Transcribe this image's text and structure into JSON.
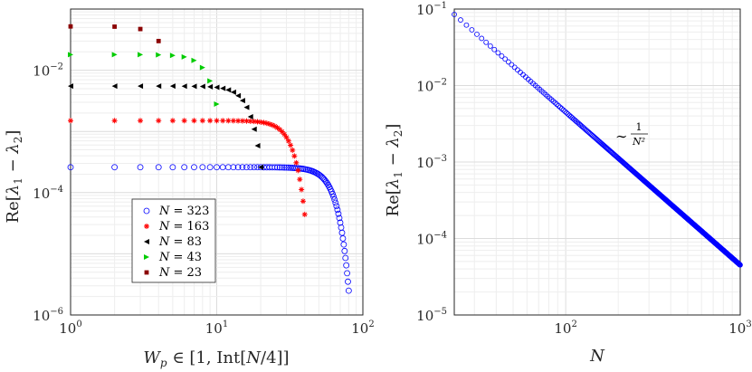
{
  "chart_data": [
    {
      "type": "scatter",
      "xscale": "log",
      "yscale": "log",
      "xlim": [
        1,
        100
      ],
      "ylim": [
        1e-06,
        0.1
      ],
      "xticks": [
        {
          "mant": "10",
          "exp": "0"
        },
        {
          "mant": "10",
          "exp": "1"
        },
        {
          "mant": "10",
          "exp": "2"
        }
      ],
      "yticks": [
        {
          "mant": "10",
          "exp": "−6"
        },
        {
          "mant": "10",
          "exp": "−4"
        },
        {
          "mant": "10",
          "exp": "−2"
        }
      ],
      "xlabel": "W_p ∈ [1, Int[N/4]]",
      "ylabel": "Re[λ₁ − λ₂]",
      "grid": true,
      "legend_position": "lower-left",
      "series": [
        {
          "name": "N = 323",
          "marker": "circle-open",
          "color": "#0000ff",
          "n": 80,
          "y_flat": 0.00026,
          "y_end": 2.5e-06
        },
        {
          "name": "N = 163",
          "marker": "star",
          "color": "#ff0000",
          "n": 40,
          "y_flat": 0.0015,
          "y_end": 4.4e-05
        },
        {
          "name": "N = 83",
          "marker": "triangle-left",
          "color": "#000000",
          "n": 20,
          "y_flat": 0.0055,
          "y_end": 0.00026
        },
        {
          "name": "N = 43",
          "marker": "triangle-right",
          "color": "#00cc00",
          "n": 10,
          "y_flat": 0.018,
          "y_end": 0.0028
        },
        {
          "name": "N = 23",
          "marker": "square",
          "color": "#8b0000",
          "n": 4,
          "y_flat": 0.052,
          "y_end": 0.03
        }
      ]
    },
    {
      "type": "scatter",
      "xscale": "log",
      "yscale": "log",
      "xlim": [
        23,
        1000
      ],
      "ylim": [
        1e-05,
        0.1
      ],
      "xticks": [
        {
          "mant": "10",
          "exp": "2"
        },
        {
          "mant": "10",
          "exp": "3"
        }
      ],
      "yticks": [
        {
          "mant": "10",
          "exp": "−5"
        },
        {
          "mant": "10",
          "exp": "−4"
        },
        {
          "mant": "10",
          "exp": "−3"
        },
        {
          "mant": "10",
          "exp": "−2"
        },
        {
          "mant": "10",
          "exp": "−1"
        }
      ],
      "xlabel": "N",
      "ylabel": "Re[λ₁ − λ₂]",
      "grid": true,
      "annotation": {
        "tilde": "∼",
        "num": "1",
        "den": "N²"
      },
      "series": [
        {
          "marker": "circle-open",
          "color": "#0000ff",
          "x_start": 23,
          "x_end": 1000,
          "x_step": 2,
          "y_at_start": 0.085,
          "slope": -2
        }
      ]
    }
  ]
}
